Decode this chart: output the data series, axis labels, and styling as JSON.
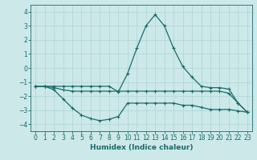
{
  "xlabel": "Humidex (Indice chaleur)",
  "xlim": [
    -0.5,
    23.5
  ],
  "ylim": [
    -4.5,
    4.5
  ],
  "xticks": [
    0,
    1,
    2,
    3,
    4,
    5,
    6,
    7,
    8,
    9,
    10,
    11,
    12,
    13,
    14,
    15,
    16,
    17,
    18,
    19,
    20,
    21,
    22,
    23
  ],
  "yticks": [
    -4,
    -3,
    -2,
    -1,
    0,
    1,
    2,
    3,
    4
  ],
  "bg_color": "#cce8e8",
  "grid_color": "#add4d4",
  "line_color": "#1a6b6b",
  "line1_x": [
    0,
    1,
    2,
    3,
    4,
    5,
    6,
    7,
    8,
    9,
    10,
    11,
    12,
    13,
    14,
    15,
    16,
    17,
    18,
    19,
    20,
    21,
    22,
    23
  ],
  "line1_y": [
    -1.3,
    -1.3,
    -1.55,
    -2.2,
    -2.85,
    -3.35,
    -3.6,
    -3.75,
    -3.65,
    -3.45,
    -2.5,
    -2.5,
    -2.5,
    -2.5,
    -2.5,
    -2.5,
    -2.65,
    -2.65,
    -2.8,
    -2.95,
    -2.95,
    -2.95,
    -3.05,
    -3.15
  ],
  "line2_x": [
    0,
    1,
    2,
    3,
    4,
    5,
    6,
    7,
    8,
    9,
    10,
    11,
    12,
    13,
    14,
    15,
    16,
    17,
    18,
    19,
    20,
    21,
    22,
    23
  ],
  "line2_y": [
    -1.3,
    -1.3,
    -1.4,
    -1.55,
    -1.65,
    -1.65,
    -1.65,
    -1.65,
    -1.65,
    -1.65,
    -1.65,
    -1.65,
    -1.65,
    -1.65,
    -1.65,
    -1.65,
    -1.65,
    -1.65,
    -1.65,
    -1.65,
    -1.65,
    -1.8,
    -2.5,
    -3.15
  ],
  "line3_x": [
    0,
    1,
    2,
    3,
    4,
    5,
    6,
    7,
    8,
    9,
    10,
    11,
    12,
    13,
    14,
    15,
    16,
    17,
    18,
    19,
    20,
    21,
    22,
    23
  ],
  "line3_y": [
    -1.3,
    -1.3,
    -1.3,
    -1.3,
    -1.3,
    -1.3,
    -1.3,
    -1.3,
    -1.3,
    -1.7,
    -0.4,
    1.4,
    3.0,
    3.8,
    3.0,
    1.4,
    0.1,
    -0.65,
    -1.3,
    -1.4,
    -1.4,
    -1.5,
    -2.5,
    -3.15
  ],
  "marker": "+",
  "markersize": 3.5,
  "linewidth": 0.9
}
